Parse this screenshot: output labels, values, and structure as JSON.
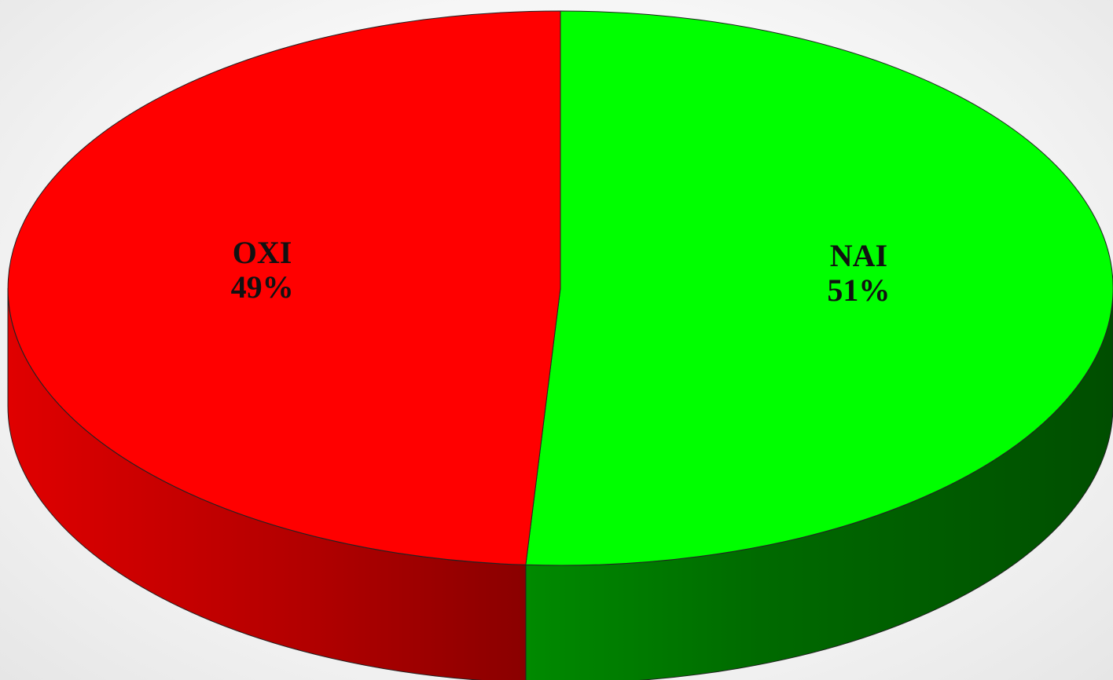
{
  "chart_data": {
    "type": "pie",
    "style": "3d",
    "title": "",
    "slices": [
      {
        "label": "NAI",
        "value": 51,
        "value_label": "51%",
        "color": "#00ff00",
        "side_color": "#006400"
      },
      {
        "label": "OXI",
        "value": 49,
        "value_label": "49%",
        "color": "#ff0000",
        "side_color": "#c00000"
      }
    ],
    "start_position": "top",
    "direction": "clockwise"
  }
}
